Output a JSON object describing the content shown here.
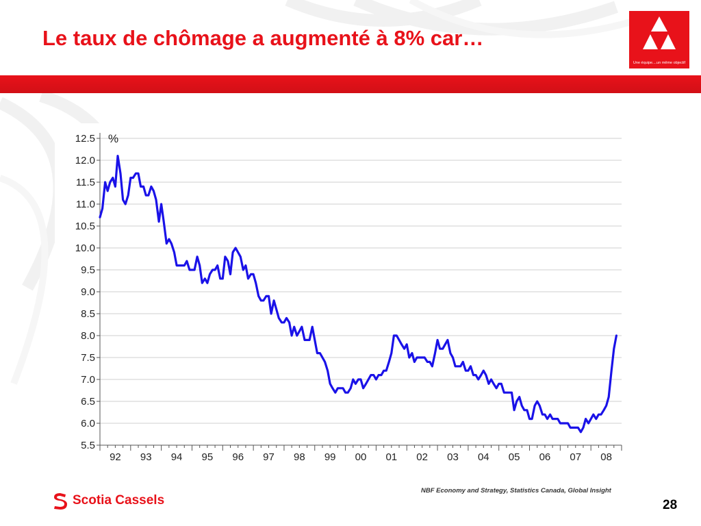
{
  "slide": {
    "title": "Le taux de chômage a augmenté à 8% car…",
    "page_number": "28",
    "source": "NBF Economy and Strategy, Statistics Canada, Global Insight",
    "brand_name": "Scotia Cassels",
    "logo_tagline": "Une équipe....un même objectif",
    "accent_color": "#e8121a"
  },
  "chart_data": {
    "type": "line",
    "unit_label": "%",
    "ylim": [
      5.5,
      12.5
    ],
    "y_ticks": [
      "12.5",
      "12.0",
      "11.5",
      "11.0",
      "10.5",
      "10.0",
      "9.5",
      "9.0",
      "8.5",
      "8.0",
      "7.5",
      "7.0",
      "6.5",
      "6.0",
      "5.5"
    ],
    "x_tick_labels": [
      "92",
      "93",
      "94",
      "95",
      "96",
      "97",
      "98",
      "99",
      "00",
      "01",
      "02",
      "03",
      "04",
      "05",
      "06",
      "07",
      "08"
    ],
    "grid": true,
    "line_color": "#1a12e8",
    "series": [
      {
        "x": [
          1992.0,
          1992.08,
          1992.17,
          1992.25,
          1992.33,
          1992.42,
          1992.5,
          1992.58,
          1992.67,
          1992.75,
          1992.83,
          1992.92,
          1993.0,
          1993.08,
          1993.17,
          1993.25,
          1993.33,
          1993.42,
          1993.5,
          1993.58,
          1993.67,
          1993.75,
          1993.83,
          1993.92,
          1994.0,
          1994.08,
          1994.17,
          1994.25,
          1994.33,
          1994.42,
          1994.5,
          1994.58,
          1994.67,
          1994.75,
          1994.83,
          1994.92,
          1995.0,
          1995.08,
          1995.17,
          1995.25,
          1995.33,
          1995.42,
          1995.5,
          1995.58,
          1995.67,
          1995.75,
          1995.83,
          1995.92,
          1996.0,
          1996.08,
          1996.17,
          1996.25,
          1996.33,
          1996.42,
          1996.5,
          1996.58,
          1996.67,
          1996.75,
          1996.83,
          1996.92,
          1997.0,
          1997.08,
          1997.17,
          1997.25,
          1997.33,
          1997.42,
          1997.5,
          1997.58,
          1997.67,
          1997.75,
          1997.83,
          1997.92,
          1998.0,
          1998.08,
          1998.17,
          1998.25,
          1998.33,
          1998.42,
          1998.5,
          1998.58,
          1998.67,
          1998.75,
          1998.83,
          1998.92,
          1999.0,
          1999.08,
          1999.17,
          1999.25,
          1999.33,
          1999.42,
          1999.5,
          1999.58,
          1999.67,
          1999.75,
          1999.83,
          1999.92,
          2000.0,
          2000.08,
          2000.17,
          2000.25,
          2000.33,
          2000.42,
          2000.5,
          2000.58,
          2000.67,
          2000.75,
          2000.83,
          2000.92,
          2001.0,
          2001.08,
          2001.17,
          2001.25,
          2001.33,
          2001.42,
          2001.5,
          2001.58,
          2001.67,
          2001.75,
          2001.83,
          2001.92,
          2002.0,
          2002.08,
          2002.17,
          2002.25,
          2002.33,
          2002.42,
          2002.5,
          2002.58,
          2002.67,
          2002.75,
          2002.83,
          2002.92,
          2003.0,
          2003.08,
          2003.17,
          2003.25,
          2003.33,
          2003.42,
          2003.5,
          2003.58,
          2003.67,
          2003.75,
          2003.83,
          2003.92,
          2004.0,
          2004.08,
          2004.17,
          2004.25,
          2004.33,
          2004.42,
          2004.5,
          2004.58,
          2004.67,
          2004.75,
          2004.83,
          2004.92,
          2005.0,
          2005.08,
          2005.17,
          2005.25,
          2005.33,
          2005.42,
          2005.5,
          2005.58,
          2005.67,
          2005.75,
          2005.83,
          2005.92,
          2006.0,
          2006.08,
          2006.17,
          2006.25,
          2006.33,
          2006.42,
          2006.5,
          2006.58,
          2006.67,
          2006.75,
          2006.83,
          2006.92,
          2007.0,
          2007.08,
          2007.17,
          2007.25,
          2007.33,
          2007.42,
          2007.5,
          2007.58,
          2007.67,
          2007.75,
          2007.83,
          2007.92,
          2008.0,
          2008.08,
          2008.17,
          2008.25,
          2008.33,
          2008.42,
          2008.5,
          2008.58,
          2008.67,
          2008.75,
          2008.83
        ],
        "y": [
          10.7,
          10.9,
          11.5,
          11.3,
          11.5,
          11.6,
          11.4,
          12.1,
          11.7,
          11.1,
          11.0,
          11.2,
          11.6,
          11.6,
          11.7,
          11.7,
          11.4,
          11.4,
          11.2,
          11.2,
          11.4,
          11.3,
          11.1,
          10.6,
          11.0,
          10.6,
          10.1,
          10.2,
          10.1,
          9.9,
          9.6,
          9.6,
          9.6,
          9.6,
          9.7,
          9.5,
          9.5,
          9.5,
          9.8,
          9.6,
          9.2,
          9.3,
          9.2,
          9.4,
          9.5,
          9.5,
          9.6,
          9.3,
          9.3,
          9.8,
          9.7,
          9.4,
          9.9,
          10.0,
          9.9,
          9.8,
          9.5,
          9.6,
          9.3,
          9.4,
          9.4,
          9.2,
          8.9,
          8.8,
          8.8,
          8.9,
          8.9,
          8.5,
          8.8,
          8.6,
          8.4,
          8.3,
          8.3,
          8.4,
          8.3,
          8.0,
          8.2,
          8.0,
          8.1,
          8.2,
          7.9,
          7.9,
          7.9,
          8.2,
          7.9,
          7.6,
          7.6,
          7.5,
          7.4,
          7.2,
          6.9,
          6.8,
          6.7,
          6.8,
          6.8,
          6.8,
          6.7,
          6.7,
          6.8,
          7.0,
          6.9,
          7.0,
          7.0,
          6.8,
          6.9,
          7.0,
          7.1,
          7.1,
          7.0,
          7.1,
          7.1,
          7.2,
          7.2,
          7.4,
          7.6,
          8.0,
          8.0,
          7.9,
          7.8,
          7.7,
          7.8,
          7.5,
          7.6,
          7.4,
          7.5,
          7.5,
          7.5,
          7.5,
          7.4,
          7.4,
          7.3,
          7.6,
          7.9,
          7.7,
          7.7,
          7.8,
          7.9,
          7.6,
          7.5,
          7.3,
          7.3,
          7.3,
          7.4,
          7.2,
          7.2,
          7.3,
          7.1,
          7.1,
          7.0,
          7.1,
          7.2,
          7.1,
          6.9,
          7.0,
          6.9,
          6.8,
          6.9,
          6.9,
          6.7,
          6.7,
          6.7,
          6.7,
          6.3,
          6.5,
          6.6,
          6.4,
          6.3,
          6.3,
          6.1,
          6.1,
          6.4,
          6.5,
          6.4,
          6.2,
          6.2,
          6.1,
          6.2,
          6.1,
          6.1,
          6.1,
          6.0,
          6.0,
          6.0,
          6.0,
          5.9,
          5.9,
          5.9,
          5.9,
          5.8,
          5.9,
          6.1,
          6.0,
          6.1,
          6.2,
          6.1,
          6.2,
          6.2,
          6.3,
          6.4,
          6.6,
          7.2,
          7.7,
          8.0
        ]
      }
    ]
  }
}
